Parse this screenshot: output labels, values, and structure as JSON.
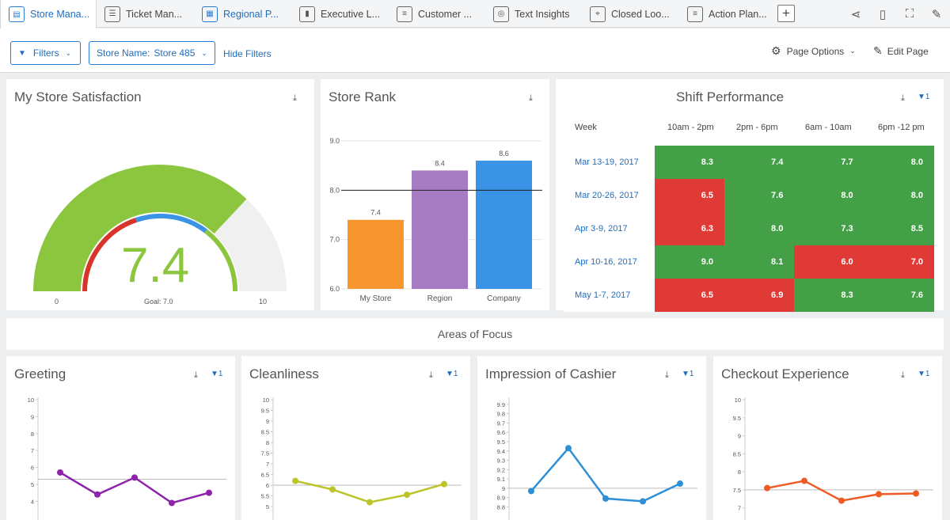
{
  "tabs": [
    {
      "label": "Store Mana...",
      "icon": "clipboard-icon",
      "glyph": "▤"
    },
    {
      "label": "Ticket Man...",
      "icon": "list-icon",
      "glyph": "☰"
    },
    {
      "label": "Regional P...",
      "icon": "grid-icon",
      "glyph": "▦"
    },
    {
      "label": "Executive L...",
      "icon": "bar-chart-icon",
      "glyph": "▮"
    },
    {
      "label": "Customer ...",
      "icon": "document-icon",
      "glyph": "≡"
    },
    {
      "label": "Text Insights",
      "icon": "fingerprint-icon",
      "glyph": "◎"
    },
    {
      "label": "Closed Loo...",
      "icon": "target-icon",
      "glyph": "⌖"
    },
    {
      "label": "Action Plan...",
      "icon": "document-icon",
      "glyph": "≡"
    }
  ],
  "toolbar": {
    "add_tab": "+",
    "icons": [
      "share-icon",
      "mobile-icon",
      "fullscreen-icon",
      "brush-icon"
    ]
  },
  "filters": {
    "filters_label": "Filters",
    "store_label": "Store Name:",
    "store_value": "Store 485",
    "hide_filters": "Hide Filters",
    "page_options": "Page Options",
    "edit_page": "Edit Page"
  },
  "satisfaction": {
    "title": "My Store Satisfaction",
    "value": "7.4",
    "min": "0",
    "max": "10",
    "goal": "Goal: 7.0",
    "gauge_fraction": 0.74
  },
  "rank": {
    "title": "Store Rank"
  },
  "shift": {
    "title": "Shift Performance",
    "filter_count": "1",
    "headers": [
      "Week",
      "10am - 2pm",
      "2pm - 6pm",
      "6am - 10am",
      "6pm -12 pm"
    ],
    "rows": [
      {
        "week": "Mar 13-19, 2017",
        "values": [
          "8.3",
          "7.4",
          "7.7",
          "8.0"
        ],
        "colors": [
          "g",
          "g",
          "g",
          "g"
        ]
      },
      {
        "week": "Mar 20-26, 2017",
        "values": [
          "6.5",
          "7.6",
          "8.0",
          "8.0"
        ],
        "colors": [
          "r",
          "g",
          "g",
          "g"
        ]
      },
      {
        "week": "Apr 3-9, 2017",
        "values": [
          "6.3",
          "8.0",
          "7.3",
          "8.5"
        ],
        "colors": [
          "r",
          "g",
          "g",
          "g"
        ]
      },
      {
        "week": "Apr 10-16, 2017",
        "values": [
          "9.0",
          "8.1",
          "6.0",
          "7.0"
        ],
        "colors": [
          "g",
          "g",
          "r",
          "r"
        ]
      },
      {
        "week": "May 1-7, 2017",
        "values": [
          "6.5",
          "6.9",
          "8.3",
          "7.6"
        ],
        "colors": [
          "r",
          "r",
          "g",
          "g"
        ]
      }
    ]
  },
  "focus": {
    "title": "Areas of Focus"
  },
  "chart_data": [
    {
      "type": "bar",
      "title": "Store Rank",
      "categories": [
        "My Store",
        "Region",
        "Company"
      ],
      "values": [
        7.4,
        8.4,
        8.6
      ],
      "colors": [
        "#f7962f",
        "#a67bc1",
        "#3a93e4"
      ],
      "ylim": [
        6,
        9
      ],
      "yticks": [
        "6.0",
        "7.0",
        "8.0",
        "9.0"
      ],
      "goal_line": 8.0
    },
    {
      "type": "line",
      "title": "Greeting",
      "filter_count": "1",
      "values": [
        5.7,
        4.4,
        5.4,
        3.9,
        4.5
      ],
      "goal": 5.3,
      "ylim": [
        3.5,
        10
      ],
      "yticks": [
        "4",
        "5",
        "6",
        "7",
        "8",
        "9",
        "10"
      ],
      "color": "#8e24aa"
    },
    {
      "type": "line",
      "title": "Cleanliness",
      "filter_count": "1",
      "values": [
        6.2,
        5.8,
        5.2,
        5.55,
        6.05
      ],
      "goal": 6.0,
      "ylim": [
        4.85,
        10
      ],
      "yticks": [
        "5",
        "5.5",
        "6",
        "6.5",
        "7",
        "7.5",
        "8",
        "8.5",
        "9",
        "9.5",
        "10"
      ],
      "color": "#bdc42a"
    },
    {
      "type": "line",
      "title": "Impression of Cashier",
      "filter_count": "1",
      "values": [
        8.97,
        9.43,
        8.89,
        8.86,
        9.05
      ],
      "goal": 9.0,
      "ylim": [
        8.77,
        9.95
      ],
      "yticks": [
        "8.8",
        "8.9",
        "9",
        "9.1",
        "9.2",
        "9.3",
        "9.4",
        "9.5",
        "9.6",
        "9.7",
        "9.8",
        "9.9"
      ],
      "color": "#2e8fd6"
    },
    {
      "type": "line",
      "title": "Checkout Experience",
      "filter_count": "1",
      "values": [
        7.55,
        7.75,
        7.2,
        7.38,
        7.4
      ],
      "goal": 7.5,
      "ylim": [
        6.95,
        10
      ],
      "yticks": [
        "7",
        "7.5",
        "8",
        "8.5",
        "9",
        "9.5",
        "10"
      ],
      "color": "#ef5a25"
    }
  ]
}
